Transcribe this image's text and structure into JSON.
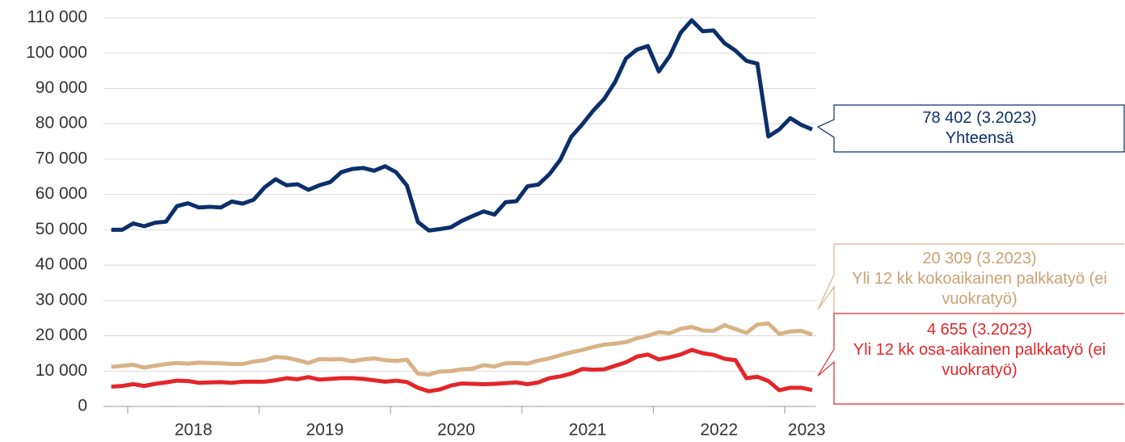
{
  "chart_data": {
    "type": "line",
    "categories": [
      null,
      null,
      null,
      null,
      null,
      null,
      null,
      "2018",
      null,
      null,
      null,
      null,
      null,
      null,
      null,
      null,
      null,
      null,
      null,
      "2019",
      null,
      null,
      null,
      null,
      null,
      null,
      null,
      null,
      null,
      null,
      null,
      "2020",
      null,
      null,
      null,
      null,
      null,
      null,
      null,
      null,
      null,
      null,
      null,
      "2021",
      null,
      null,
      null,
      null,
      null,
      null,
      null,
      null,
      null,
      null,
      null,
      "2022",
      null,
      null,
      null,
      null,
      null,
      null,
      null,
      "2023",
      null
    ],
    "series": [
      {
        "name": "Yhteensä",
        "end_label": "78 402 (3.2023)",
        "color": "#0b2f6b",
        "values": [
          50000,
          50000,
          51800,
          51000,
          52000,
          52300,
          56700,
          57500,
          56300,
          56500,
          56300,
          58000,
          57400,
          58500,
          62000,
          64300,
          62600,
          62900,
          61300,
          62600,
          63500,
          66300,
          67200,
          67500,
          66700,
          68000,
          66300,
          62500,
          52200,
          49800,
          50200,
          50700,
          52500,
          53900,
          55200,
          54300,
          57800,
          58100,
          62300,
          62800,
          65700,
          69800,
          76300,
          79800,
          83700,
          87000,
          91800,
          98500,
          101000,
          102000,
          94800,
          99200,
          105800,
          109300,
          106200,
          106400,
          102800,
          100700,
          97800,
          97000,
          76400,
          78400,
          81600,
          79700,
          78402
        ]
      },
      {
        "name": "Yli 12 kk kokoaikainen palkkatyö (ei vuokratyö)",
        "end_label": "20 309 (3.2023)",
        "color": "#d8b386",
        "values": [
          11200,
          11500,
          11800,
          11000,
          11500,
          12000,
          12300,
          12100,
          12400,
          12300,
          12200,
          12000,
          12000,
          12700,
          13100,
          14000,
          13800,
          13100,
          12300,
          13400,
          13300,
          13400,
          12800,
          13300,
          13600,
          13100,
          12900,
          13200,
          9300,
          9000,
          9900,
          10000,
          10500,
          10700,
          11700,
          11300,
          12200,
          12300,
          12100,
          13000,
          13600,
          14500,
          15300,
          16000,
          16800,
          17500,
          17800,
          18200,
          19300,
          20000,
          21000,
          20700,
          22000,
          22500,
          21500,
          21400,
          23000,
          21900,
          20800,
          23200,
          23500,
          20500,
          21200,
          21400,
          20309
        ]
      },
      {
        "name": "Yli 12 kk osa-aikainen palkkatyö (ei vuokratyö)",
        "end_label": "4 655 (3.2023)",
        "color": "#e3262a",
        "values": [
          5600,
          5800,
          6300,
          5800,
          6400,
          6800,
          7300,
          7200,
          6700,
          6800,
          6900,
          6700,
          7000,
          7000,
          7000,
          7400,
          8000,
          7700,
          8300,
          7600,
          7800,
          8000,
          8000,
          7800,
          7400,
          7000,
          7300,
          6900,
          5300,
          4300,
          4800,
          5900,
          6500,
          6400,
          6300,
          6400,
          6600,
          6800,
          6300,
          6800,
          8000,
          8500,
          9300,
          10600,
          10400,
          10500,
          11500,
          12500,
          14100,
          14700,
          13300,
          13900,
          14700,
          16000,
          15100,
          14600,
          13500,
          13100,
          8000,
          8400,
          7200,
          4600,
          5300,
          5300,
          4655
        ]
      }
    ],
    "ylim": [
      0,
      110000
    ],
    "yticks": [
      {
        "value": 0,
        "label": "0"
      },
      {
        "value": 10000,
        "label": "10 000"
      },
      {
        "value": 20000,
        "label": "20 000"
      },
      {
        "value": 30000,
        "label": "30 000"
      },
      {
        "value": 40000,
        "label": "40 000"
      },
      {
        "value": 50000,
        "label": "50 000"
      },
      {
        "value": 60000,
        "label": "60 000"
      },
      {
        "value": 70000,
        "label": "70 000"
      },
      {
        "value": 80000,
        "label": "80 000"
      },
      {
        "value": 90000,
        "label": "90 000"
      },
      {
        "value": 100000,
        "label": "100 000"
      },
      {
        "value": 110000,
        "label": "110 000"
      }
    ],
    "grid": true
  }
}
